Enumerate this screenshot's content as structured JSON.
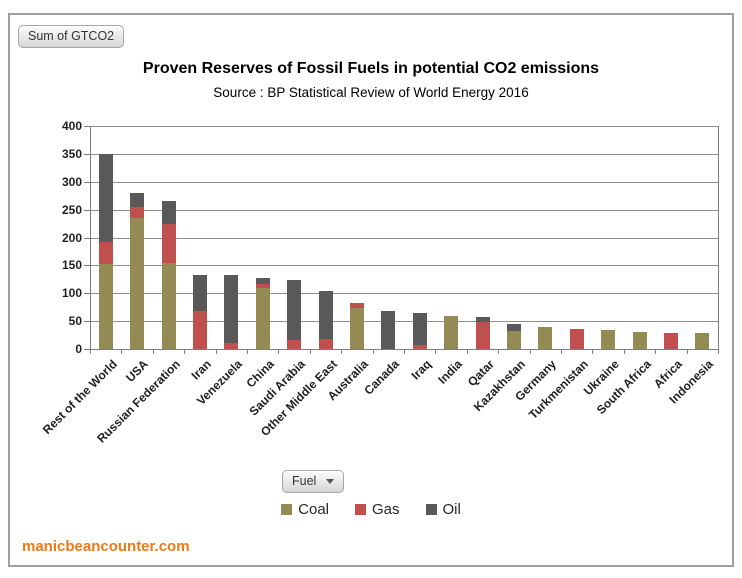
{
  "pivot_buttons": {
    "value_field": "Sum of GTCO2",
    "fuel_field": "Fuel"
  },
  "header": {
    "title": "Proven Reserves of Fossil Fuels in potential CO2 emissions",
    "subtitle": "Source : BP Statistical Review of World Energy 2016"
  },
  "footer": {
    "site": "manicbeancounter.com"
  },
  "colors": {
    "coal": "#948A54",
    "gas": "#C0504D",
    "oil": "#595959",
    "gridline": "#8f8f8f",
    "axis": "#7f7f7f",
    "footer_link": "#ed7a17"
  },
  "chart_data": {
    "type": "bar",
    "stacked": true,
    "title": "Proven Reserves of Fossil Fuels in potential CO2 emissions",
    "subtitle": "Source : BP Statistical Review of World Energy 2016",
    "xlabel": "",
    "ylabel": "",
    "ylim": [
      0,
      400
    ],
    "ytick_step": 50,
    "grid": true,
    "legend_position": "bottom",
    "categories": [
      "Rest of the World",
      "USA",
      "Russian Federation",
      "Iran",
      "Venezuela",
      "China",
      "Saudi Arabia",
      "Other Middle East",
      "Australia",
      "Canada",
      "Iraq",
      "India",
      "Qatar",
      "Kazakhstan",
      "Germany",
      "Turkmenistan",
      "Ukraine",
      "South Africa",
      "Africa",
      "Indonesia"
    ],
    "series": [
      {
        "name": "Coal",
        "color": "#948A54",
        "values": [
          152,
          235,
          155,
          0,
          0,
          110,
          0,
          0,
          73,
          0,
          0,
          60,
          0,
          33,
          40,
          0,
          34,
          30,
          0,
          29
        ]
      },
      {
        "name": "Gas",
        "color": "#C0504D",
        "values": [
          40,
          20,
          70,
          68,
          10,
          7,
          17,
          18,
          10,
          0,
          7,
          0,
          48,
          0,
          0,
          35,
          0,
          0,
          29,
          0
        ]
      },
      {
        "name": "Oil",
        "color": "#595959",
        "values": [
          158,
          25,
          40,
          65,
          123,
          10,
          107,
          86,
          0,
          68,
          57,
          0,
          10,
          11,
          0,
          0,
          0,
          0,
          0,
          0
        ]
      }
    ],
    "totals": [
      350,
      280,
      265,
      133,
      133,
      127,
      124,
      104,
      83,
      68,
      64,
      60,
      58,
      44,
      40,
      35,
      34,
      30,
      29,
      29
    ]
  }
}
